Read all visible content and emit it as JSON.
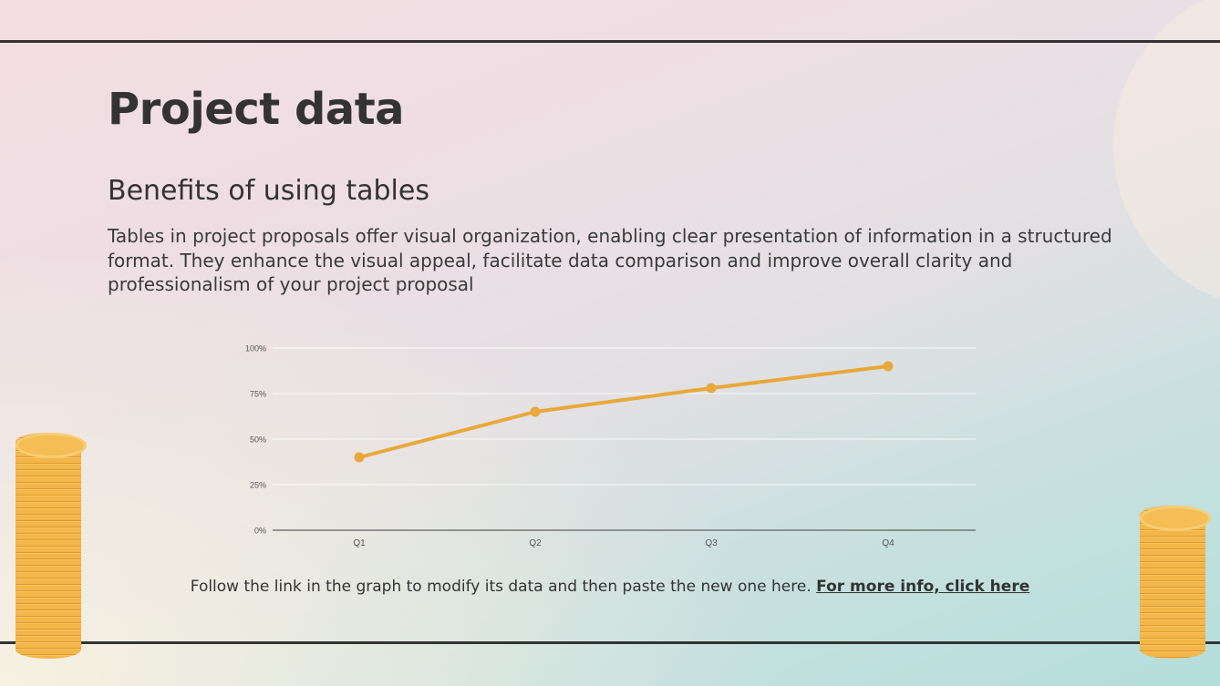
{
  "title": "Project data",
  "subtitle": "Benefits of using tables",
  "paragraph": "Tables in project proposals offer visual organization, enabling clear presentation of information in a structured format. They enhance the visual appeal, facilitate data comparison and improve overall clarity and professionalism of your project proposal",
  "footer": {
    "text": "Follow the link in the graph to modify its data and then paste the new one here. ",
    "link": "For more info, click here"
  },
  "colors": {
    "line": "#e8a83a",
    "text": "#333333"
  },
  "chart_data": {
    "type": "line",
    "categories": [
      "Q1",
      "Q2",
      "Q3",
      "Q4"
    ],
    "series": [
      {
        "values": [
          40,
          65,
          78,
          90
        ]
      }
    ],
    "yticks": [
      "0%",
      "25%",
      "50%",
      "75%",
      "100%"
    ],
    "ylim": [
      0,
      100
    ],
    "grid": true,
    "legend": "none"
  }
}
